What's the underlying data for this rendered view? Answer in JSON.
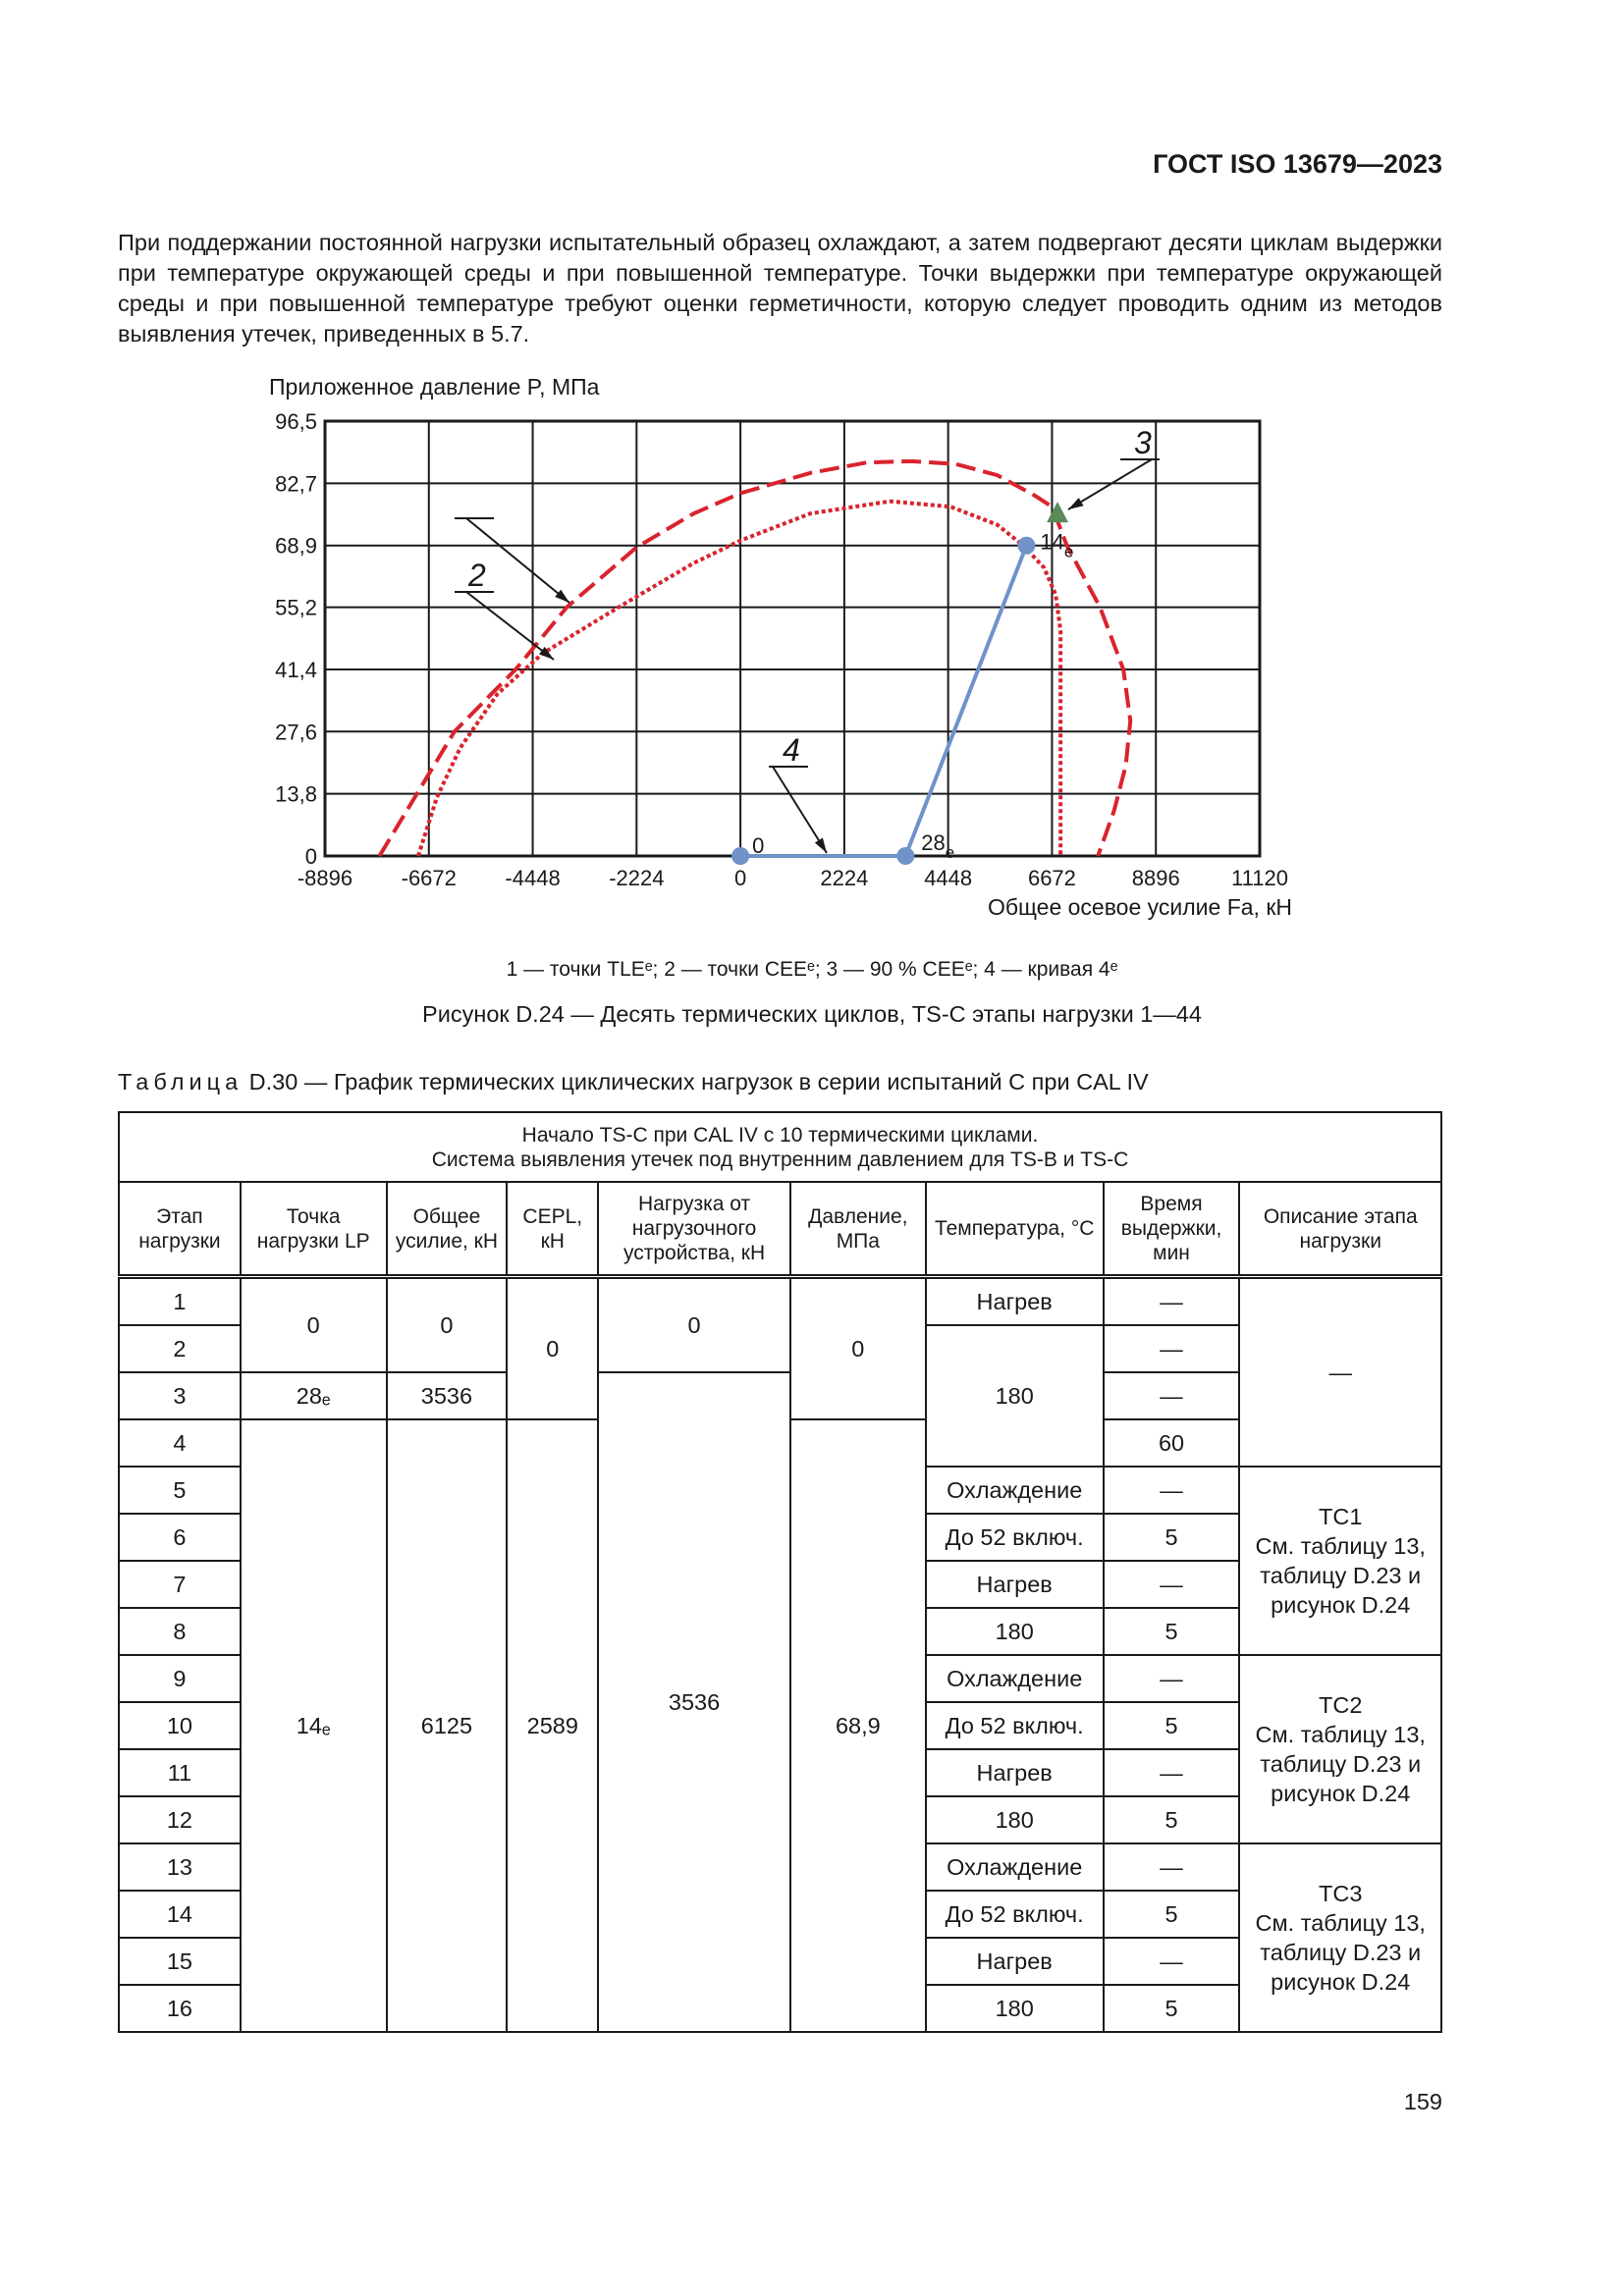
{
  "header": {
    "doc_id": "ГОСТ ISO 13679—2023"
  },
  "paragraph": "При поддержании постоянной нагрузки испытательный образец охлаждают, а затем подвергают десяти циклам выдержки при температуре окружающей среды и при повышенной температуре. Точки выдержки при температуре окружающей среды и при повышенной температуре требуют оценки герметичности, которую следует проводить одним из методов выявления утечек, приведенных в 5.7.",
  "chart_data": {
    "type": "line",
    "ylabel": "Приложенное давление P, МПа",
    "xlabel": "Общее осевое усилие Fa, кН",
    "xlim": [
      -8896,
      11120
    ],
    "ylim": [
      0,
      96.5
    ],
    "xticks": [
      "-8896",
      "-6672",
      "-4448",
      "-2224",
      "0",
      "2224",
      "4448",
      "6672",
      "8896",
      "11120"
    ],
    "yticks": [
      "0",
      "13,8",
      "27,6",
      "41,4",
      "55,2",
      "68,9",
      "82,7",
      "96,5"
    ],
    "grid": true,
    "colors": {
      "curves": "#d9232d",
      "tle": "#6f93c8",
      "cee": "#5a8a5a"
    },
    "series": [
      {
        "label": "4",
        "style": "dashed",
        "points": [
          [
            -7730,
            0
          ],
          [
            -6927,
            13.8
          ],
          [
            -6125,
            27.6
          ],
          [
            -4813,
            41.4
          ],
          [
            -3719,
            55.2
          ],
          [
            -2224,
            68.5
          ],
          [
            -1000,
            76
          ],
          [
            0,
            80.5
          ],
          [
            1500,
            85
          ],
          [
            2700,
            87.3
          ],
          [
            3646,
            87.6
          ],
          [
            4600,
            87
          ],
          [
            5500,
            84.5
          ],
          [
            6300,
            80
          ],
          [
            6672,
            77.5
          ],
          [
            6990,
            68.9
          ],
          [
            7700,
            55.2
          ],
          [
            8200,
            41.4
          ],
          [
            8350,
            30
          ],
          [
            8250,
            20
          ],
          [
            8000,
            10
          ],
          [
            7656,
            0
          ]
        ]
      },
      {
        "label": "3",
        "style": "dotted",
        "points": [
          [
            -6900,
            0
          ],
          [
            -6500,
            13
          ],
          [
            -6000,
            24
          ],
          [
            -5200,
            36
          ],
          [
            -4229,
            45
          ],
          [
            -2479,
            56
          ],
          [
            -1000,
            65
          ],
          [
            0,
            70
          ],
          [
            1500,
            76
          ],
          [
            3200,
            78.7
          ],
          [
            4500,
            77.5
          ],
          [
            5500,
            73.5
          ],
          [
            6052,
            68.9
          ],
          [
            6500,
            64
          ],
          [
            6750,
            58
          ],
          [
            6855,
            50
          ],
          [
            6855,
            0
          ]
        ]
      },
      {
        "label": "1",
        "style": "solid",
        "points": [
          [
            0,
            0
          ],
          [
            3536,
            0
          ],
          [
            6125,
            68.9
          ]
        ],
        "point_labels": [
          "0",
          "28",
          "14"
        ],
        "point_label_sub": [
          "",
          "e",
          "e"
        ]
      },
      {
        "label": "2",
        "style": "marker",
        "points": [
          [
            6790,
            76
          ]
        ]
      }
    ]
  },
  "legend": "1 — точки TLEᵉ; 2 — точки CEEᵉ; 3 — 90 % CEEᵉ; 4 — кривая 4ᵉ",
  "figure_caption": "Рисунок D.24 — Десять термических циклов, TS-C этапы нагрузки 1—44",
  "table": {
    "label": "Таблица",
    "title": " D.30 — График термических циклических нагрузок в серии испытаний C при CAL IV",
    "group_header": "Начало TS-C при CAL IV с 10 термическими циклами.\nСистема выявления утечек под внутренним давлением для TS-B и TS-C",
    "columns": [
      "Этап нагрузки",
      "Точка нагрузки LP",
      "Общее усилие, кН",
      "CEPL, кН",
      "Нагрузка от нагрузочного устройства, кН",
      "Давление, МПа",
      "Температура, °С",
      "Время выдержки, мин",
      "Описание этапа нагрузки"
    ],
    "rows": [
      [
        "1",
        "0",
        "0",
        "0",
        "0",
        "0",
        "Нагрев",
        "—",
        "—"
      ],
      [
        "2",
        "180",
        "—"
      ],
      [
        "3",
        "28ₑ",
        "3536",
        "3536",
        "—"
      ],
      [
        "4",
        "14ₑ",
        "6125",
        "2589",
        "68,9",
        "60"
      ],
      [
        "5",
        "Охлаждение",
        "—",
        "TC1\nСм. таблицу 13, таблицу D.23 и рисунок D.24"
      ],
      [
        "6",
        "До 52 включ.",
        "5"
      ],
      [
        "7",
        "Нагрев",
        "—"
      ],
      [
        "8",
        "180",
        "5"
      ],
      [
        "9",
        "Охлаждение",
        "—",
        "TC2\nСм. таблицу 13, таблицу D.23 и рисунок D.24"
      ],
      [
        "10",
        "До 52 включ.",
        "5"
      ],
      [
        "11",
        "Нагрев",
        "—"
      ],
      [
        "12",
        "180",
        "5"
      ],
      [
        "13",
        "Охлаждение",
        "—",
        "TC3\nСм. таблицу 13, таблицу D.23 и рисунок D.24"
      ],
      [
        "14",
        "До 52 включ.",
        "5"
      ],
      [
        "15",
        "Нагрев",
        "—"
      ],
      [
        "16",
        "180",
        "5"
      ]
    ]
  },
  "page_number": "159"
}
